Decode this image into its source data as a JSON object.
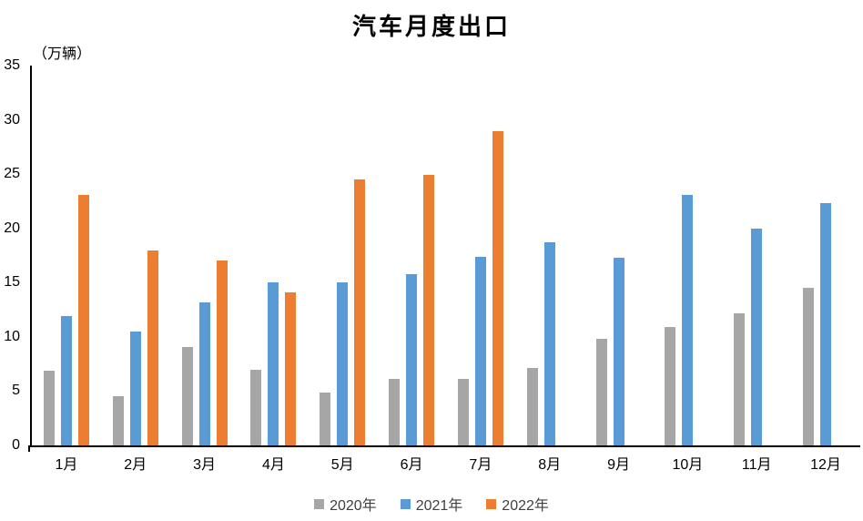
{
  "chart_data": {
    "type": "bar",
    "title": "汽车月度出口",
    "unit_label": "（万辆）",
    "categories": [
      "1月",
      "2月",
      "3月",
      "4月",
      "5月",
      "6月",
      "7月",
      "8月",
      "9月",
      "10月",
      "11月",
      "12月"
    ],
    "series": [
      {
        "name": "2020年",
        "color": "#A6A6A6",
        "values": [
          6.9,
          4.5,
          9.1,
          7.0,
          4.9,
          6.1,
          6.1,
          7.1,
          9.8,
          10.9,
          12.2,
          14.5
        ]
      },
      {
        "name": "2021年",
        "color": "#5B9BD5",
        "values": [
          11.9,
          10.5,
          13.2,
          15.0,
          15.0,
          15.8,
          17.4,
          18.7,
          17.3,
          23.1,
          20.0,
          22.3
        ]
      },
      {
        "name": "2022年",
        "color": "#ED7D31",
        "values": [
          23.1,
          18.0,
          17.0,
          14.1,
          24.5,
          24.9,
          29.0,
          null,
          null,
          null,
          null,
          null
        ]
      }
    ],
    "ylim": [
      0,
      35
    ],
    "yticks": [
      0,
      5,
      10,
      15,
      20,
      25,
      30,
      35
    ],
    "xlabel": "",
    "ylabel": "",
    "legend_position": "bottom",
    "grid": false,
    "background_color": "#ffffff",
    "axis_color": "#000000"
  }
}
